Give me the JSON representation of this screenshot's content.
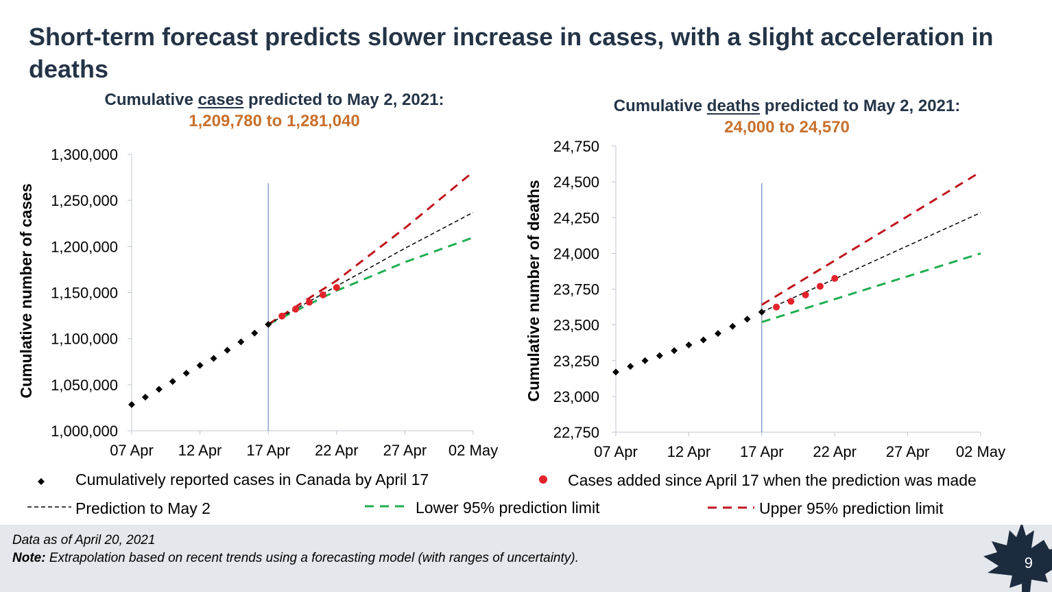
{
  "slide": {
    "title": "Short-term forecast predicts slower increase in cases, with a slight acceleration in deaths",
    "page_number": "9",
    "footer": {
      "data_as_of": "Data as of April 20, 2021",
      "note_label": "Note:",
      "note_text": " Extrapolation based on recent trends using a forecasting model (with ranges of uncertainty)."
    },
    "legend": {
      "reported": "Cumulatively reported cases in Canada by April 17",
      "added": "Cases added since April 17 when the prediction was made",
      "prediction": "Prediction to May 2",
      "lower": "Lower 95% prediction limit",
      "upper": "Upper 95% prediction limit"
    },
    "colors": {
      "title": "#243447",
      "range_text": "#c8702c",
      "reported_marker": "#000000",
      "added_marker": "#e3232c",
      "prediction_line": "#000000",
      "lower_line": "#1fae4f",
      "upper_line": "#c0141c",
      "forecast_start_line": "#4a74b0"
    }
  },
  "charts": {
    "cases": {
      "heading_pre": "Cumulative ",
      "heading_word": "cases",
      "heading_post": " predicted to May 2, 2021:",
      "range": "1,209,780 to 1,281,040"
    },
    "deaths": {
      "heading_pre": "Cumulative ",
      "heading_word": "deaths",
      "heading_post": " predicted to May 2, 2021:",
      "range": "24,000 to 24,570"
    }
  },
  "chart_data": [
    {
      "type": "line",
      "id": "cases",
      "ylabel": "Cumulative number of cases",
      "x_ticks": [
        "07 Apr",
        "12 Apr",
        "17 Apr",
        "22 Apr",
        "27 Apr",
        "02 May"
      ],
      "y_ticks": [
        "1,000,000",
        "1,050,000",
        "1,100,000",
        "1,150,000",
        "1,200,000",
        "1,250,000",
        "1,300,000"
      ],
      "ylim": [
        1000000,
        1300000
      ],
      "xlim": [
        "2021-04-07",
        "2021-05-02"
      ],
      "forecast_start": "2021-04-17",
      "series": [
        {
          "name": "Cumulatively reported cases in Canada by April 17",
          "style": "diamond-markers",
          "x": [
            "2021-04-07",
            "2021-04-08",
            "2021-04-09",
            "2021-04-10",
            "2021-04-11",
            "2021-04-12",
            "2021-04-13",
            "2021-04-14",
            "2021-04-15",
            "2021-04-16",
            "2021-04-17"
          ],
          "y": [
            1028500,
            1036500,
            1045000,
            1053500,
            1062500,
            1071000,
            1078500,
            1087500,
            1096500,
            1106000,
            1115500
          ]
        },
        {
          "name": "Cases added since April 17 when the prediction was made",
          "style": "dot-markers",
          "x": [
            "2021-04-18",
            "2021-04-19",
            "2021-04-20",
            "2021-04-21",
            "2021-04-22"
          ],
          "y": [
            1124500,
            1132000,
            1139500,
            1147500,
            1155500
          ]
        },
        {
          "name": "Prediction to May 2",
          "style": "dashed-thin",
          "x": [
            "2021-04-17",
            "2021-04-22",
            "2021-04-27",
            "2021-05-02"
          ],
          "y": [
            1115500,
            1157000,
            1198000,
            1237000
          ]
        },
        {
          "name": "Lower 95% prediction limit",
          "style": "dashed-thick",
          "x": [
            "2021-04-17",
            "2021-04-22",
            "2021-04-27",
            "2021-05-02"
          ],
          "y": [
            1115500,
            1152000,
            1183000,
            1209780
          ]
        },
        {
          "name": "Upper 95% prediction limit",
          "style": "dashed-thick",
          "x": [
            "2021-04-17",
            "2021-04-22",
            "2021-04-27",
            "2021-05-02"
          ],
          "y": [
            1115500,
            1163000,
            1220000,
            1281040
          ]
        }
      ]
    },
    {
      "type": "line",
      "id": "deaths",
      "ylabel": "Cumulative number of deaths",
      "x_ticks": [
        "07 Apr",
        "12 Apr",
        "17 Apr",
        "22 Apr",
        "27 Apr",
        "02 May"
      ],
      "y_ticks": [
        "22,750",
        "23,000",
        "23,250",
        "23,500",
        "23,750",
        "24,000",
        "24,250",
        "24,500",
        "24,750"
      ],
      "ylim": [
        22750,
        24750
      ],
      "xlim": [
        "2021-04-07",
        "2021-05-02"
      ],
      "forecast_start": "2021-04-17",
      "series": [
        {
          "name": "Cumulatively reported cases in Canada by April 17",
          "style": "diamond-markers",
          "x": [
            "2021-04-07",
            "2021-04-08",
            "2021-04-09",
            "2021-04-10",
            "2021-04-11",
            "2021-04-12",
            "2021-04-13",
            "2021-04-14",
            "2021-04-15",
            "2021-04-16",
            "2021-04-17"
          ],
          "y": [
            23170,
            23210,
            23250,
            23285,
            23320,
            23360,
            23395,
            23440,
            23490,
            23540,
            23590
          ]
        },
        {
          "name": "Cases added since April 17 when the prediction was made",
          "style": "dot-markers",
          "x": [
            "2021-04-18",
            "2021-04-19",
            "2021-04-20",
            "2021-04-21",
            "2021-04-22"
          ],
          "y": [
            23625,
            23665,
            23710,
            23770,
            23825
          ]
        },
        {
          "name": "Prediction to May 2",
          "style": "dashed-thin",
          "x": [
            "2021-04-17",
            "2021-05-02"
          ],
          "y": [
            23590,
            24285
          ]
        },
        {
          "name": "Lower 95% prediction limit",
          "style": "dashed-thick",
          "x": [
            "2021-04-17",
            "2021-05-02"
          ],
          "y": [
            23520,
            24000
          ]
        },
        {
          "name": "Upper 95% prediction limit",
          "style": "dashed-thick",
          "x": [
            "2021-04-17",
            "2021-05-02"
          ],
          "y": [
            23640,
            24570
          ]
        }
      ]
    }
  ]
}
